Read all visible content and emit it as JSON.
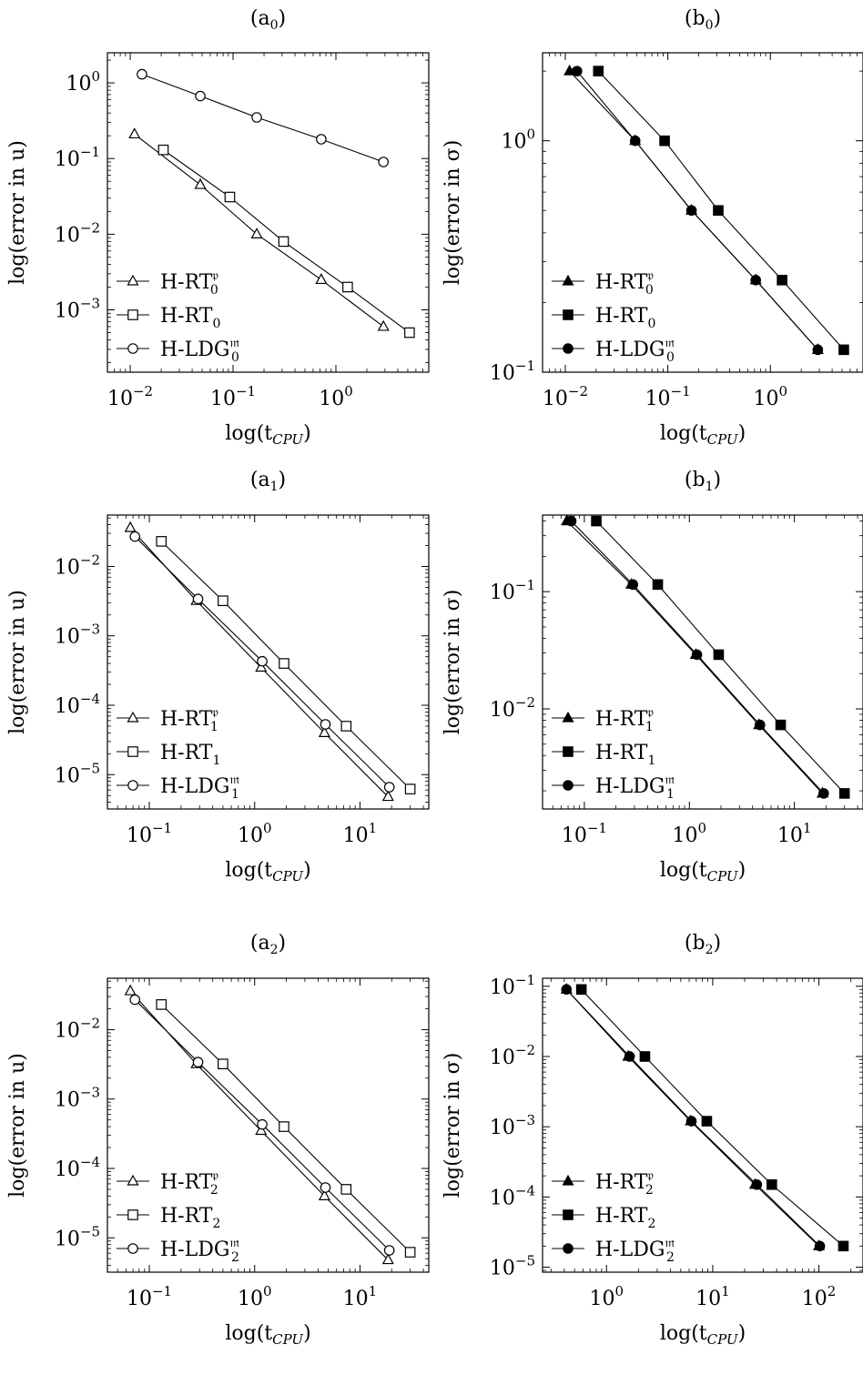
{
  "chart_data": [
    {
      "id": "a0",
      "type": "line",
      "title": "(a",
      "title_sub": "0",
      "title_end": ")",
      "xlabel": "log(t",
      "xlabel_sub": "CPU",
      "xlabel_end": ")",
      "ylabel": "log(error in u)",
      "xscale": "log",
      "yscale": "log",
      "xlim": [
        0.006,
        8
      ],
      "ylim": [
        0.00015,
        2.5
      ],
      "xticks": [
        {
          "v": 0.01,
          "b": "10",
          "e": "−2"
        },
        {
          "v": 0.1,
          "b": "10",
          "e": "−1"
        },
        {
          "v": 1,
          "b": "10",
          "e": "0"
        }
      ],
      "yticks": [
        {
          "v": 0.001,
          "b": "10",
          "e": "−3"
        },
        {
          "v": 0.01,
          "b": "10",
          "e": "−2"
        },
        {
          "v": 0.1,
          "b": "10",
          "e": "−1"
        },
        {
          "v": 1,
          "b": "10",
          "e": "0"
        }
      ],
      "legend_position": "bottom-left",
      "series": [
        {
          "name": "H-RT",
          "sub": "0",
          "sup": "𝔭",
          "marker": "triangle",
          "filled": false,
          "x": [
            0.011,
            0.048,
            0.17,
            0.72,
            2.9
          ],
          "y": [
            0.21,
            0.045,
            0.01,
            0.0025,
            0.0006
          ]
        },
        {
          "name": "H-RT",
          "sub": "0",
          "sup": "",
          "marker": "square",
          "filled": false,
          "x": [
            0.021,
            0.093,
            0.31,
            1.3,
            5.2
          ],
          "y": [
            0.13,
            0.031,
            0.008,
            0.002,
            0.0005
          ]
        },
        {
          "name": "H-LDG",
          "sub": "0",
          "sup": "𝔪",
          "marker": "circle",
          "filled": false,
          "x": [
            0.013,
            0.048,
            0.17,
            0.72,
            2.9
          ],
          "y": [
            1.3,
            0.67,
            0.35,
            0.18,
            0.09
          ]
        }
      ]
    },
    {
      "id": "b0",
      "type": "line",
      "title": "(b",
      "title_sub": "0",
      "title_end": ")",
      "xlabel": "log(t",
      "xlabel_sub": "CPU",
      "xlabel_end": ")",
      "ylabel": "log(error in σ)",
      "xscale": "log",
      "yscale": "log",
      "xlim": [
        0.006,
        8
      ],
      "ylim": [
        0.1,
        2.4
      ],
      "xticks": [
        {
          "v": 0.01,
          "b": "10",
          "e": "−2"
        },
        {
          "v": 0.1,
          "b": "10",
          "e": "−1"
        },
        {
          "v": 1,
          "b": "10",
          "e": "0"
        }
      ],
      "yticks": [
        {
          "v": 0.1,
          "b": "10",
          "e": "−1"
        },
        {
          "v": 1,
          "b": "10",
          "e": "0"
        }
      ],
      "legend_position": "bottom-left",
      "series": [
        {
          "name": "H-RT",
          "sub": "0",
          "sup": "𝔭",
          "marker": "triangle",
          "filled": true,
          "x": [
            0.011,
            0.048,
            0.17,
            0.72,
            2.9
          ],
          "y": [
            2.0,
            1.0,
            0.5,
            0.25,
            0.125
          ]
        },
        {
          "name": "H-RT",
          "sub": "0",
          "sup": "",
          "marker": "square",
          "filled": true,
          "x": [
            0.021,
            0.093,
            0.31,
            1.3,
            5.2
          ],
          "y": [
            2.0,
            1.0,
            0.5,
            0.25,
            0.125
          ]
        },
        {
          "name": "H-LDG",
          "sub": "0",
          "sup": "𝔪",
          "marker": "circle",
          "filled": true,
          "x": [
            0.013,
            0.048,
            0.17,
            0.72,
            2.9
          ],
          "y": [
            2.0,
            1.0,
            0.5,
            0.25,
            0.125
          ]
        }
      ]
    },
    {
      "id": "a1",
      "type": "line",
      "title": "(a",
      "title_sub": "1",
      "title_end": ")",
      "xlabel": "log(t",
      "xlabel_sub": "CPU",
      "xlabel_end": ")",
      "ylabel": "log(error in u)",
      "xscale": "log",
      "yscale": "log",
      "xlim": [
        0.04,
        45
      ],
      "ylim": [
        3.2e-06,
        0.055
      ],
      "xticks": [
        {
          "v": 0.1,
          "b": "10",
          "e": "−1"
        },
        {
          "v": 1,
          "b": "10",
          "e": "0"
        },
        {
          "v": 10,
          "b": "10",
          "e": "1"
        }
      ],
      "yticks": [
        {
          "v": 1e-05,
          "b": "10",
          "e": "−5"
        },
        {
          "v": 0.0001,
          "b": "10",
          "e": "−4"
        },
        {
          "v": 0.001,
          "b": "10",
          "e": "−3"
        },
        {
          "v": 0.01,
          "b": "10",
          "e": "−2"
        }
      ],
      "legend_position": "bottom-left",
      "series": [
        {
          "name": "H-RT",
          "sub": "1",
          "sup": "𝔭",
          "marker": "triangle",
          "filled": false,
          "x": [
            0.066,
            0.28,
            1.15,
            4.6,
            18.5
          ],
          "y": [
            0.036,
            0.0032,
            0.00035,
            4e-05,
            4.8e-06
          ]
        },
        {
          "name": "H-RT",
          "sub": "1",
          "sup": "",
          "marker": "square",
          "filled": false,
          "x": [
            0.13,
            0.5,
            1.9,
            7.4,
            30
          ],
          "y": [
            0.023,
            0.0032,
            0.0004,
            5e-05,
            6.2e-06
          ]
        },
        {
          "name": "H-LDG",
          "sub": "1",
          "sup": "𝔪",
          "marker": "circle",
          "filled": false,
          "x": [
            0.073,
            0.29,
            1.18,
            4.7,
            19
          ],
          "y": [
            0.027,
            0.0034,
            0.00043,
            5.3e-05,
            6.6e-06
          ]
        }
      ]
    },
    {
      "id": "b1",
      "type": "line",
      "title": "(b",
      "title_sub": "1",
      "title_end": ")",
      "xlabel": "log(t",
      "xlabel_sub": "CPU",
      "xlabel_end": ")",
      "ylabel": "log(error in σ)",
      "xscale": "log",
      "yscale": "log",
      "xlim": [
        0.04,
        45
      ],
      "ylim": [
        0.0014,
        0.45
      ],
      "xticks": [
        {
          "v": 0.1,
          "b": "10",
          "e": "−1"
        },
        {
          "v": 1,
          "b": "10",
          "e": "0"
        },
        {
          "v": 10,
          "b": "10",
          "e": "1"
        }
      ],
      "yticks": [
        {
          "v": 0.01,
          "b": "10",
          "e": "−2"
        },
        {
          "v": 0.1,
          "b": "10",
          "e": "−1"
        }
      ],
      "legend_position": "bottom-left",
      "series": [
        {
          "name": "H-RT",
          "sub": "1",
          "sup": "𝔭",
          "marker": "triangle",
          "filled": true,
          "x": [
            0.068,
            0.28,
            1.15,
            4.6,
            18.5
          ],
          "y": [
            0.4,
            0.115,
            0.029,
            0.0073,
            0.0019
          ]
        },
        {
          "name": "H-RT",
          "sub": "1",
          "sup": "",
          "marker": "square",
          "filled": true,
          "x": [
            0.13,
            0.5,
            1.9,
            7.4,
            30
          ],
          "y": [
            0.4,
            0.115,
            0.029,
            0.0073,
            0.0019
          ]
        },
        {
          "name": "H-LDG",
          "sub": "1",
          "sup": "𝔪",
          "marker": "circle",
          "filled": true,
          "x": [
            0.075,
            0.29,
            1.18,
            4.7,
            19
          ],
          "y": [
            0.4,
            0.115,
            0.029,
            0.0073,
            0.0019
          ]
        }
      ]
    },
    {
      "id": "a2",
      "type": "line",
      "title": "(a",
      "title_sub": "2",
      "title_end": ")",
      "xlabel": "log(t",
      "xlabel_sub": "CPU",
      "xlabel_end": ")",
      "ylabel": "log(error in u)",
      "xscale": "log",
      "yscale": "log",
      "xlim": [
        0.04,
        45
      ],
      "ylim": [
        3.2e-06,
        0.055
      ],
      "xticks": [
        {
          "v": 0.1,
          "b": "10",
          "e": "−1"
        },
        {
          "v": 1,
          "b": "10",
          "e": "0"
        },
        {
          "v": 10,
          "b": "10",
          "e": "1"
        }
      ],
      "yticks": [
        {
          "v": 1e-05,
          "b": "10",
          "e": "−5"
        },
        {
          "v": 0.0001,
          "b": "10",
          "e": "−4"
        },
        {
          "v": 0.001,
          "b": "10",
          "e": "−3"
        },
        {
          "v": 0.01,
          "b": "10",
          "e": "−2"
        }
      ],
      "legend_position": "bottom-left",
      "series": [
        {
          "name": "H-RT",
          "sub": "2",
          "sup": "𝔭",
          "marker": "triangle",
          "filled": false,
          "x": [
            0.066,
            0.28,
            1.15,
            4.6,
            18.5
          ],
          "y": [
            0.036,
            0.0032,
            0.00035,
            4e-05,
            4.8e-06
          ]
        },
        {
          "name": "H-RT",
          "sub": "2",
          "sup": "",
          "marker": "square",
          "filled": false,
          "x": [
            0.13,
            0.5,
            1.9,
            7.4,
            30
          ],
          "y": [
            0.023,
            0.0032,
            0.0004,
            5e-05,
            6.2e-06
          ]
        },
        {
          "name": "H-LDG",
          "sub": "2",
          "sup": "𝔪",
          "marker": "circle",
          "filled": false,
          "x": [
            0.073,
            0.29,
            1.18,
            4.7,
            19
          ],
          "y": [
            0.027,
            0.0034,
            0.00043,
            5.3e-05,
            6.6e-06
          ]
        }
      ]
    },
    {
      "id": "b2",
      "type": "line",
      "title": "(b",
      "title_sub": "2",
      "title_end": ")",
      "xlabel": "log(t",
      "xlabel_sub": "CPU",
      "xlabel_end": ")",
      "ylabel": "log(error in σ)",
      "xscale": "log",
      "yscale": "log",
      "xlim": [
        0.25,
        260
      ],
      "ylim": [
        8.5e-06,
        0.13
      ],
      "xticks": [
        {
          "v": 1,
          "b": "10",
          "e": "0"
        },
        {
          "v": 10,
          "b": "10",
          "e": "1"
        },
        {
          "v": 100,
          "b": "10",
          "e": "2"
        }
      ],
      "yticks": [
        {
          "v": 1e-05,
          "b": "10",
          "e": "−5"
        },
        {
          "v": 0.0001,
          "b": "10",
          "e": "−4"
        },
        {
          "v": 0.001,
          "b": "10",
          "e": "−3"
        },
        {
          "v": 0.01,
          "b": "10",
          "e": "−2"
        },
        {
          "v": 0.1,
          "b": "10",
          "e": "−1"
        }
      ],
      "legend_position": "bottom-left",
      "series": [
        {
          "name": "H-RT",
          "sub": "2",
          "sup": "𝔭",
          "marker": "triangle",
          "filled": true,
          "x": [
            0.42,
            1.6,
            6.2,
            25,
            100
          ],
          "y": [
            0.09,
            0.01,
            0.0012,
            0.00015,
            2e-05
          ]
        },
        {
          "name": "H-RT",
          "sub": "2",
          "sup": "",
          "marker": "square",
          "filled": true,
          "x": [
            0.58,
            2.3,
            8.8,
            36,
            170
          ],
          "y": [
            0.09,
            0.01,
            0.0012,
            0.00015,
            2e-05
          ]
        },
        {
          "name": "H-LDG",
          "sub": "2",
          "sup": "𝔪",
          "marker": "circle",
          "filled": true,
          "x": [
            0.42,
            1.65,
            6.3,
            26,
            102
          ],
          "y": [
            0.09,
            0.01,
            0.0012,
            0.00015,
            2e-05
          ]
        }
      ]
    }
  ]
}
